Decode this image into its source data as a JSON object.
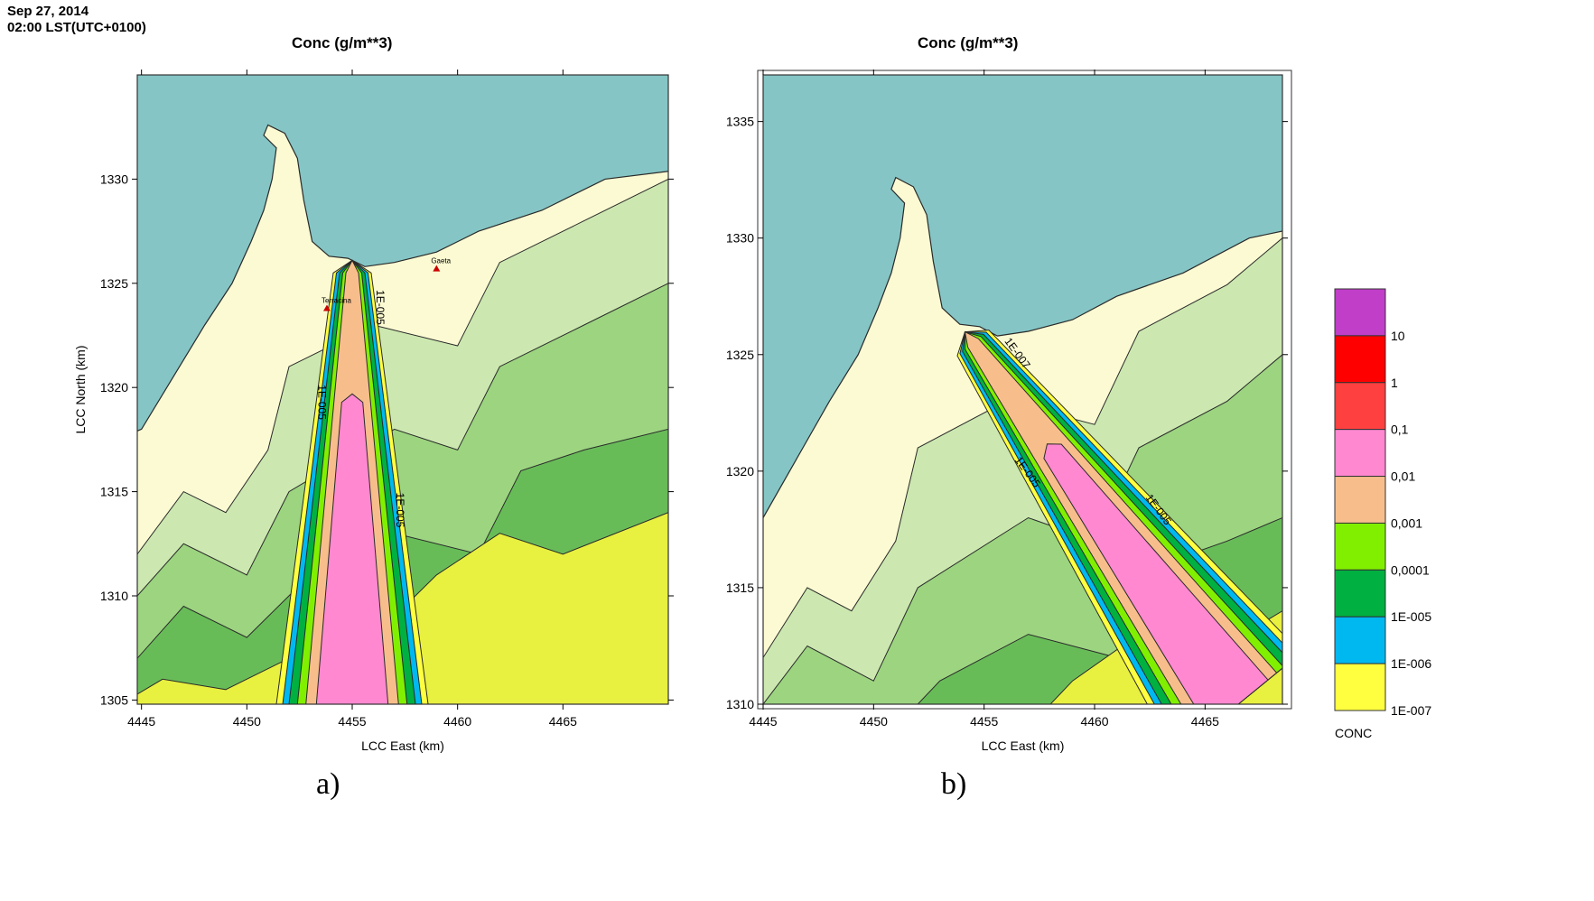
{
  "header": {
    "date": "Sep 27, 2014",
    "time": "02:00 LST(UTC+0100)"
  },
  "chart_data": [
    {
      "type": "heatmap",
      "panel_label": "a)",
      "title": "Conc (g/m**3)",
      "xlabel": "LCC East (km)",
      "ylabel": "LCC North (km)",
      "xlim": [
        4444.8,
        4470
      ],
      "ylim": [
        1304.8,
        1335
      ],
      "x_ticks": [
        4445,
        4450,
        4455,
        4460,
        4465
      ],
      "y_ticks": [
        1305,
        1310,
        1315,
        1320,
        1325,
        1330
      ],
      "contour_labels": [
        "1E-005",
        "1E-005",
        "1E-005"
      ],
      "site_labels": [
        "Gaeta",
        "Terracina"
      ],
      "plume": {
        "source": [
          4455,
          1325.5
        ],
        "direction": "south",
        "end": [
          4455,
          1304.8
        ]
      }
    },
    {
      "type": "heatmap",
      "panel_label": "b)",
      "title": "Conc (g/m**3)",
      "xlabel": "LCC East (km)",
      "ylabel": "",
      "xlim": [
        4445,
        4468.5
      ],
      "ylim": [
        1310,
        1337
      ],
      "x_ticks": [
        4445,
        4450,
        4455,
        4460,
        4465
      ],
      "y_ticks": [
        1310,
        1315,
        1320,
        1325,
        1330,
        1335
      ],
      "contour_labels": [
        "1E-007",
        "1E-005",
        "1E-005"
      ],
      "plume": {
        "source": [
          4454.5,
          1325.5
        ],
        "direction": "south-east",
        "end": [
          4466.5,
          1310
        ]
      }
    }
  ],
  "legend": {
    "title": "CONC",
    "levels": [
      "10",
      "1",
      "0,1",
      "0,01",
      "0,001",
      "0,0001",
      "1E-005",
      "1E-006",
      "1E-007"
    ],
    "colors": [
      "#c13ec8",
      "#ff0000",
      "#ff4040",
      "#ff88d0",
      "#f7be8c",
      "#80f000",
      "#00b040",
      "#00b8f0",
      "#ffff40"
    ]
  },
  "palette": {
    "sea": "#85c5c5",
    "land": "#fbfad2",
    "green_light": "#cce8b0",
    "green_mid": "#9cd480",
    "green_dark": "#68bc58",
    "yellow": "#e8f040"
  }
}
